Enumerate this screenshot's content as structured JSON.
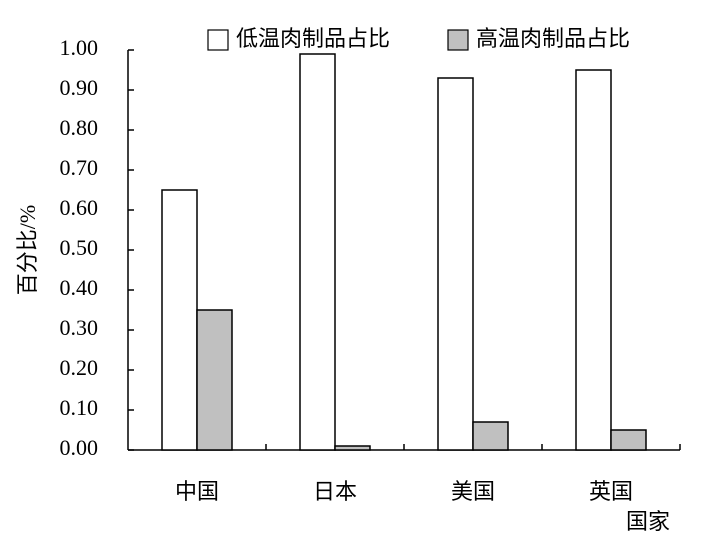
{
  "chart_data": {
    "type": "bar",
    "categories": [
      "中国",
      "日本",
      "美国",
      "英国"
    ],
    "series": [
      {
        "name": "低温肉制品占比",
        "color": "#ffffff",
        "values": [
          0.65,
          0.99,
          0.93,
          0.95
        ]
      },
      {
        "name": "高温肉制品占比",
        "color": "#c0c0c0",
        "values": [
          0.35,
          0.01,
          0.07,
          0.05
        ]
      }
    ],
    "y_label": "百分比/%",
    "x_label": "国家",
    "ylim": [
      0,
      1
    ],
    "yticks": [
      {
        "value": 0,
        "label": "0.00"
      },
      {
        "value": 0.1,
        "label": "0.10"
      },
      {
        "value": 0.2,
        "label": "0.20"
      },
      {
        "value": 0.3,
        "label": "0.30"
      },
      {
        "value": 0.4,
        "label": "0.40"
      },
      {
        "value": 0.5,
        "label": "0.50"
      },
      {
        "value": 0.6,
        "label": "0.60"
      },
      {
        "value": 0.7,
        "label": "0.70"
      },
      {
        "value": 0.8,
        "label": "0.80"
      },
      {
        "value": 0.9,
        "label": "0.90"
      },
      {
        "value": 1,
        "label": "1.00"
      }
    ],
    "legend": "top"
  }
}
